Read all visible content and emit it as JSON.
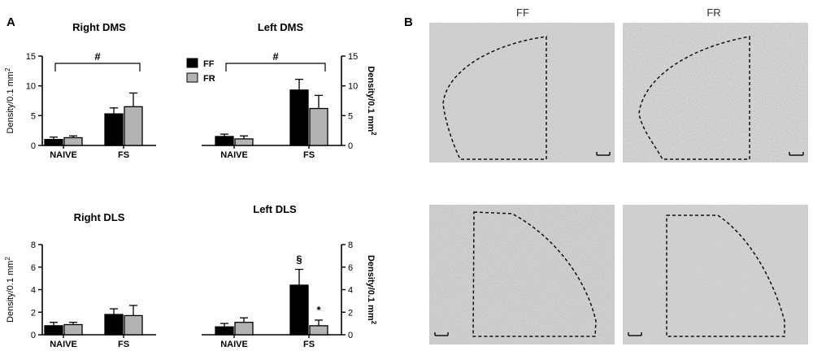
{
  "panel_a_label": "A",
  "panel_b_label": "B",
  "legend": {
    "ff": "FF",
    "fr": "FR"
  },
  "chart_data": [
    {
      "type": "bar",
      "title": "Right DMS",
      "ylabel": "Density/0.1 mm",
      "ylabel_sup": "2",
      "categories": [
        "NAIVE",
        "FS"
      ],
      "ylim": [
        0,
        15
      ],
      "yticks": [
        "0",
        "5",
        "10",
        "15"
      ],
      "series": [
        {
          "name": "FF",
          "values": [
            1.0,
            5.3
          ],
          "errors": [
            0.4,
            1.0
          ],
          "color": "#000000"
        },
        {
          "name": "FR",
          "values": [
            1.3,
            6.5
          ],
          "errors": [
            0.3,
            2.3
          ],
          "color": "#b3b3b3"
        }
      ],
      "annotations": [
        {
          "text": "#",
          "type": "bracket",
          "from": "NAIVE",
          "to": "FS",
          "y": 14
        }
      ]
    },
    {
      "type": "bar",
      "title": "Left DMS",
      "ylabel": "Density/0.1 mm",
      "ylabel_sup": "2",
      "categories": [
        "NAIVE",
        "FS"
      ],
      "ylim": [
        0,
        15
      ],
      "yticks": [
        "0",
        "5",
        "10",
        "15"
      ],
      "series": [
        {
          "name": "FF",
          "values": [
            1.5,
            9.3
          ],
          "errors": [
            0.4,
            1.8
          ],
          "color": "#000000"
        },
        {
          "name": "FR",
          "values": [
            1.1,
            6.2
          ],
          "errors": [
            0.5,
            2.2
          ],
          "color": "#b3b3b3"
        }
      ],
      "annotations": [
        {
          "text": "#",
          "type": "bracket",
          "from": "NAIVE",
          "to": "FS",
          "y": 14
        }
      ]
    },
    {
      "type": "bar",
      "title": "Right DLS",
      "ylabel": "Density/0.1 mm",
      "ylabel_sup": "2",
      "categories": [
        "NAIVE",
        "FS"
      ],
      "ylim": [
        0,
        8
      ],
      "yticks": [
        "0",
        "2",
        "4",
        "6",
        "8"
      ],
      "series": [
        {
          "name": "FF",
          "values": [
            0.8,
            1.8
          ],
          "errors": [
            0.3,
            0.5
          ],
          "color": "#000000"
        },
        {
          "name": "FR",
          "values": [
            0.9,
            1.7
          ],
          "errors": [
            0.2,
            0.9
          ],
          "color": "#b3b3b3"
        }
      ],
      "annotations": []
    },
    {
      "type": "bar",
      "title": "Left DLS",
      "ylabel": "Density/0.1 mm",
      "ylabel_sup": "2",
      "categories": [
        "NAIVE",
        "FS"
      ],
      "ylim": [
        0,
        8
      ],
      "yticks": [
        "0",
        "2",
        "4",
        "6",
        "8"
      ],
      "series": [
        {
          "name": "FF",
          "values": [
            0.7,
            4.4
          ],
          "errors": [
            0.3,
            1.4
          ],
          "color": "#000000"
        },
        {
          "name": "FR",
          "values": [
            1.1,
            0.8
          ],
          "errors": [
            0.4,
            0.5
          ],
          "color": "#b3b3b3"
        }
      ],
      "annotations": [
        {
          "text": "§",
          "type": "above",
          "category": "FS",
          "series": "FF"
        },
        {
          "text": "*",
          "type": "above",
          "category": "FS",
          "series": "FR"
        }
      ]
    }
  ],
  "micrographs": {
    "columns": [
      "FF",
      "FR"
    ]
  }
}
